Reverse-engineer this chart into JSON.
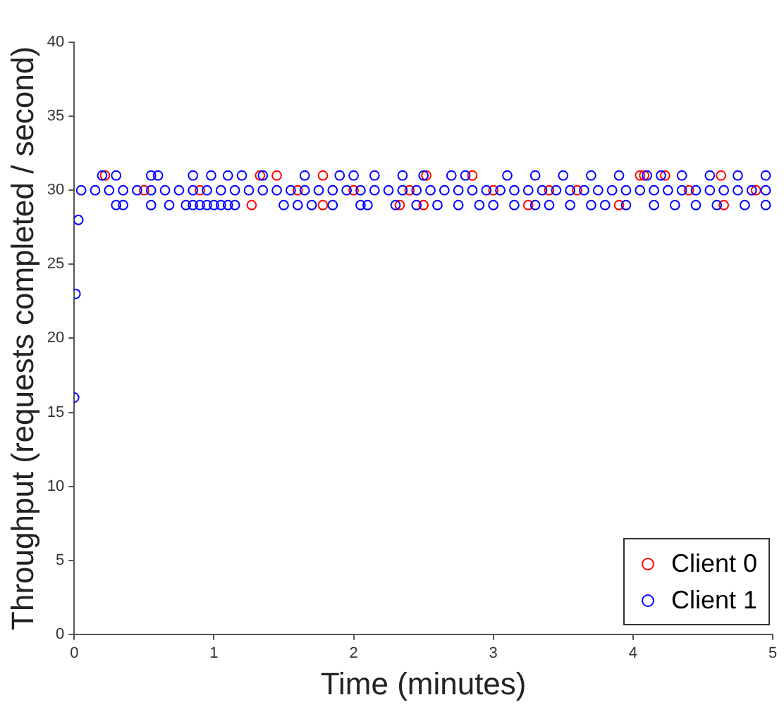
{
  "chart_data": {
    "type": "scatter",
    "xlabel": "Time (minutes)",
    "ylabel": "Throughput (requests completed / second)",
    "xlim": [
      0,
      5
    ],
    "xticks": [
      0,
      1,
      2,
      3,
      4,
      5
    ],
    "ylim": [
      0,
      40
    ],
    "yticks": [
      0,
      5,
      10,
      15,
      20,
      25,
      30,
      35,
      40
    ],
    "grid": false,
    "legend": "bottom right",
    "marker": "circle",
    "series": [
      {
        "name": "Client 0",
        "color": "#ff0000",
        "x": [
          0.22,
          0.5,
          0.9,
          1.27,
          1.33,
          1.45,
          1.6,
          1.78,
          1.78,
          2.0,
          2.33,
          2.4,
          2.5,
          2.52,
          2.85,
          3.0,
          3.25,
          3.4,
          3.6,
          3.9,
          4.05,
          4.08,
          4.23,
          4.4,
          4.63,
          4.65,
          4.88
        ],
        "values": [
          31,
          30,
          30,
          29,
          31,
          31,
          30,
          31,
          29,
          30,
          29,
          30,
          29,
          31,
          31,
          30,
          29,
          30,
          30,
          29,
          31,
          31,
          31,
          30,
          31,
          29,
          30
        ]
      },
      {
        "name": "Client 1",
        "color": "#0000ff",
        "x": [
          0.0,
          0.01,
          0.03,
          0.05,
          0.15,
          0.25,
          0.35,
          0.45,
          0.55,
          0.65,
          0.75,
          0.85,
          0.95,
          1.05,
          1.15,
          1.25,
          1.35,
          1.45,
          1.55,
          1.65,
          1.75,
          1.85,
          1.95,
          2.05,
          2.15,
          2.25,
          2.35,
          2.45,
          2.55,
          2.65,
          2.75,
          2.85,
          2.95,
          3.05,
          3.15,
          3.25,
          3.35,
          3.45,
          3.55,
          3.65,
          3.75,
          3.85,
          3.95,
          4.05,
          4.15,
          4.25,
          4.35,
          4.45,
          4.55,
          4.65,
          4.75,
          4.85,
          4.95,
          0.2,
          0.3,
          0.55,
          0.6,
          0.85,
          0.98,
          1.1,
          1.2,
          1.35,
          1.65,
          1.9,
          2.0,
          2.15,
          2.35,
          2.5,
          2.7,
          2.8,
          3.1,
          3.3,
          3.5,
          3.7,
          3.9,
          4.1,
          4.2,
          4.35,
          4.55,
          4.75,
          4.95,
          0.3,
          0.35,
          0.55,
          0.68,
          0.8,
          0.85,
          0.9,
          0.95,
          1.0,
          1.05,
          1.1,
          1.15,
          1.5,
          1.6,
          1.7,
          1.85,
          2.05,
          2.1,
          2.3,
          2.45,
          2.6,
          2.75,
          2.9,
          3.0,
          3.15,
          3.3,
          3.4,
          3.55,
          3.7,
          3.8,
          3.95,
          4.15,
          4.3,
          4.45,
          4.6,
          4.8,
          4.95
        ],
        "values": [
          16,
          23,
          28,
          30,
          30,
          30,
          30,
          30,
          30,
          30,
          30,
          30,
          30,
          30,
          30,
          30,
          30,
          30,
          30,
          30,
          30,
          30,
          30,
          30,
          30,
          30,
          30,
          30,
          30,
          30,
          30,
          30,
          30,
          30,
          30,
          30,
          30,
          30,
          30,
          30,
          30,
          30,
          30,
          30,
          30,
          30,
          30,
          30,
          30,
          30,
          30,
          30,
          30,
          31,
          31,
          31,
          31,
          31,
          31,
          31,
          31,
          31,
          31,
          31,
          31,
          31,
          31,
          31,
          31,
          31,
          31,
          31,
          31,
          31,
          31,
          31,
          31,
          31,
          31,
          31,
          31,
          29,
          29,
          29,
          29,
          29,
          29,
          29,
          29,
          29,
          29,
          29,
          29,
          29,
          29,
          29,
          29,
          29,
          29,
          29,
          29,
          29,
          29,
          29,
          29,
          29,
          29,
          29,
          29,
          29,
          29,
          29,
          29,
          29,
          29,
          29,
          29,
          29
        ]
      }
    ]
  }
}
